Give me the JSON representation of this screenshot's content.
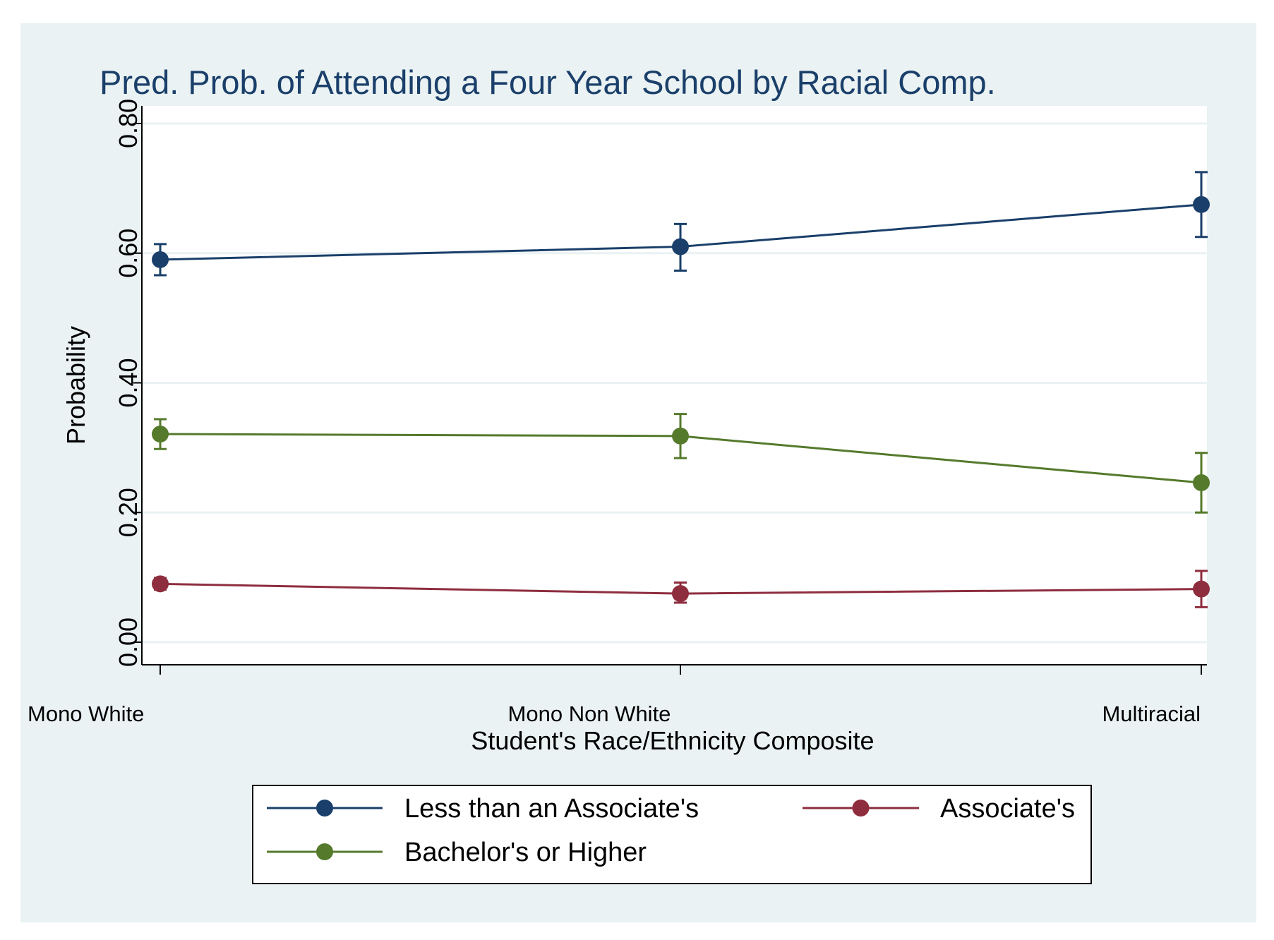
{
  "chart_data": {
    "type": "line",
    "title": "Pred. Prob. of Attending a Four Year School by Racial Comp.",
    "xlabel": "Student's Race/Ethnicity Composite",
    "ylabel": "Probability",
    "categories": [
      "Mono White",
      "Mono Non White",
      "Multiracial"
    ],
    "ylim": [
      0,
      0.8
    ],
    "yticks": [
      0.0,
      0.2,
      0.4,
      0.6,
      0.8
    ],
    "ytick_labels": [
      "0.00",
      "0.20",
      "0.40",
      "0.60",
      "0.80"
    ],
    "grid": true,
    "legend_position": "bottom",
    "series": [
      {
        "name": "Less than an Associate's",
        "color": "#1a3f6a",
        "values": [
          0.59,
          0.61,
          0.675
        ],
        "ci_low": [
          0.566,
          0.573,
          0.625
        ],
        "ci_high": [
          0.614,
          0.645,
          0.725
        ]
      },
      {
        "name": "Associate's",
        "color": "#8e2d3e",
        "values": [
          0.09,
          0.075,
          0.082
        ],
        "ci_low": [
          0.081,
          0.061,
          0.054
        ],
        "ci_high": [
          0.099,
          0.092,
          0.11
        ]
      },
      {
        "name": "Bachelor's or Higher",
        "color": "#557a2c",
        "values": [
          0.321,
          0.318,
          0.246
        ],
        "ci_low": [
          0.298,
          0.284,
          0.2
        ],
        "ci_high": [
          0.344,
          0.352,
          0.292
        ]
      }
    ]
  }
}
